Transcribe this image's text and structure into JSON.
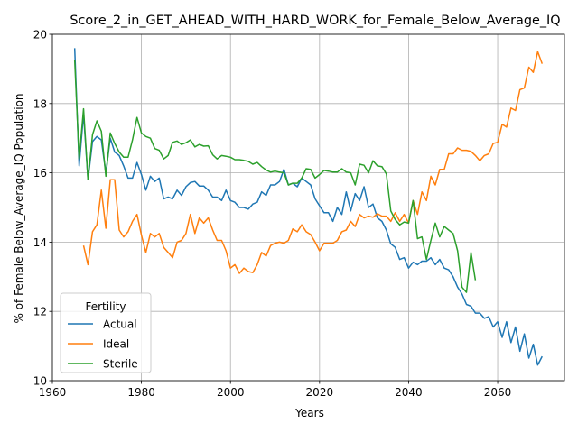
{
  "chart_data": {
    "type": "line",
    "title": "Score_2_in_GET_AHEAD_WITH_HARD_WORK_for_Female_Below_Average_IQ",
    "xlabel": "Years",
    "ylabel": "% of Female Below_Average_IQ Population",
    "xlim": [
      1960,
      2075
    ],
    "ylim": [
      10,
      20
    ],
    "xticks": [
      1960,
      1980,
      2000,
      2020,
      2040,
      2060
    ],
    "yticks": [
      10,
      12,
      14,
      16,
      18,
      20
    ],
    "grid": true,
    "legend": {
      "title": "Fertility",
      "position": "lower-left"
    },
    "series": [
      {
        "name": "Actual",
        "color": "#1f77b4",
        "x": [
          1965,
          1966,
          1967,
          1968,
          1969,
          1970,
          1971,
          1972,
          1973,
          1974,
          1975,
          1976,
          1977,
          1978,
          1979,
          1980,
          1981,
          1982,
          1983,
          1984,
          1985,
          1986,
          1987,
          1988,
          1989,
          1990,
          1991,
          1992,
          1993,
          1994,
          1995,
          1996,
          1997,
          1998,
          1999,
          2000,
          2001,
          2002,
          2003,
          2004,
          2005,
          2006,
          2007,
          2008,
          2009,
          2010,
          2011,
          2012,
          2013,
          2014,
          2015,
          2016,
          2017,
          2018,
          2019,
          2020,
          2021,
          2022,
          2023,
          2024,
          2025,
          2026,
          2027,
          2028,
          2029,
          2030,
          2031,
          2032,
          2033,
          2034,
          2035,
          2036,
          2037,
          2038,
          2039,
          2040,
          2041,
          2042,
          2043,
          2044,
          2045,
          2046,
          2047,
          2048,
          2049,
          2050,
          2051,
          2052,
          2053,
          2054,
          2055,
          2056,
          2057,
          2058,
          2059,
          2060,
          2061,
          2062,
          2063,
          2064,
          2065,
          2066,
          2067,
          2068,
          2069,
          2070
        ],
        "values": [
          19.6,
          16.2,
          17.7,
          15.8,
          16.9,
          17.05,
          16.95,
          16.0,
          17.0,
          16.6,
          16.5,
          16.2,
          15.85,
          15.85,
          16.3,
          15.95,
          15.5,
          15.9,
          15.75,
          15.85,
          15.25,
          15.3,
          15.25,
          15.5,
          15.35,
          15.6,
          15.72,
          15.75,
          15.62,
          15.62,
          15.5,
          15.3,
          15.3,
          15.2,
          15.5,
          15.2,
          15.15,
          15.0,
          15.0,
          14.95,
          15.1,
          15.15,
          15.45,
          15.35,
          15.65,
          15.65,
          15.75,
          16.1,
          15.65,
          15.7,
          15.6,
          15.85,
          15.75,
          15.65,
          15.25,
          15.05,
          14.85,
          14.85,
          14.6,
          15.0,
          14.8,
          15.45,
          14.9,
          15.4,
          15.2,
          15.6,
          15.0,
          15.1,
          14.7,
          14.6,
          14.35,
          13.95,
          13.85,
          13.5,
          13.55,
          13.25,
          13.42,
          13.35,
          13.45,
          13.45,
          13.55,
          13.35,
          13.5,
          13.25,
          13.2,
          13.0,
          12.7,
          12.5,
          12.2,
          12.15,
          11.95,
          11.95,
          11.8,
          11.85,
          11.55,
          11.7,
          11.25,
          11.7,
          11.1,
          11.55,
          10.85,
          11.35,
          10.65,
          11.05,
          10.45,
          10.7
        ]
      },
      {
        "name": "Ideal",
        "color": "#ff7f0e",
        "x": [
          1967,
          1968,
          1969,
          1970,
          1971,
          1972,
          1973,
          1974,
          1975,
          1976,
          1977,
          1978,
          1979,
          1980,
          1981,
          1982,
          1983,
          1984,
          1985,
          1986,
          1987,
          1988,
          1989,
          1990,
          1991,
          1992,
          1993,
          1994,
          1995,
          1996,
          1997,
          1998,
          1999,
          2000,
          2001,
          2002,
          2003,
          2004,
          2005,
          2006,
          2007,
          2008,
          2009,
          2010,
          2011,
          2012,
          2013,
          2014,
          2015,
          2016,
          2017,
          2018,
          2019,
          2020,
          2021,
          2022,
          2023,
          2024,
          2025,
          2026,
          2027,
          2028,
          2029,
          2030,
          2031,
          2032,
          2033,
          2034,
          2035,
          2036,
          2037,
          2038,
          2039,
          2040,
          2041,
          2042,
          2043,
          2044,
          2045,
          2046,
          2047,
          2048,
          2049,
          2050,
          2051,
          2052,
          2053,
          2054,
          2055,
          2056,
          2057,
          2058,
          2059,
          2060,
          2061,
          2062,
          2063,
          2064,
          2065,
          2066,
          2067,
          2068,
          2069,
          2070
        ],
        "values": [
          13.9,
          13.35,
          14.3,
          14.5,
          15.5,
          14.4,
          15.8,
          15.8,
          14.35,
          14.15,
          14.3,
          14.6,
          14.8,
          14.2,
          13.7,
          14.25,
          14.15,
          14.25,
          13.85,
          13.7,
          13.55,
          14.0,
          14.05,
          14.25,
          14.8,
          14.25,
          14.7,
          14.55,
          14.7,
          14.35,
          14.05,
          14.05,
          13.75,
          13.25,
          13.35,
          13.1,
          13.25,
          13.15,
          13.12,
          13.35,
          13.7,
          13.6,
          13.9,
          13.97,
          14.0,
          13.97,
          14.05,
          14.38,
          14.3,
          14.5,
          14.3,
          14.22,
          14.0,
          13.75,
          13.97,
          13.97,
          13.97,
          14.05,
          14.3,
          14.35,
          14.6,
          14.45,
          14.8,
          14.7,
          14.75,
          14.72,
          14.82,
          14.75,
          14.75,
          14.6,
          14.85,
          14.6,
          14.8,
          14.55,
          15.2,
          14.8,
          15.45,
          15.2,
          15.9,
          15.65,
          16.1,
          16.1,
          16.55,
          16.55,
          16.72,
          16.65,
          16.65,
          16.62,
          16.5,
          16.35,
          16.5,
          16.55,
          16.85,
          16.88,
          17.4,
          17.32,
          17.87,
          17.8,
          18.4,
          18.45,
          19.05,
          18.9,
          19.5,
          19.15
        ]
      },
      {
        "name": "Sterile",
        "color": "#2ca02c",
        "x": [
          1965,
          1966,
          1967,
          1968,
          1969,
          1970,
          1971,
          1972,
          1973,
          1974,
          1975,
          1976,
          1977,
          1978,
          1979,
          1980,
          1981,
          1982,
          1983,
          1984,
          1985,
          1986,
          1987,
          1988,
          1989,
          1990,
          1991,
          1992,
          1993,
          1994,
          1995,
          1996,
          1997,
          1998,
          1999,
          2000,
          2001,
          2002,
          2003,
          2004,
          2005,
          2006,
          2007,
          2008,
          2009,
          2010,
          2011,
          2012,
          2013,
          2014,
          2015,
          2016,
          2017,
          2018,
          2019,
          2020,
          2021,
          2022,
          2023,
          2024,
          2025,
          2026,
          2027,
          2028,
          2029,
          2030,
          2031,
          2032,
          2033,
          2034,
          2035,
          2036,
          2037,
          2038,
          2039,
          2040,
          2041,
          2042,
          2043,
          2044,
          2045,
          2046,
          2047,
          2048,
          2049,
          2050,
          2051,
          2052,
          2053,
          2054,
          2055
        ],
        "values": [
          19.25,
          16.4,
          17.85,
          15.8,
          17.1,
          17.5,
          17.2,
          15.9,
          17.15,
          16.85,
          16.6,
          16.45,
          16.45,
          16.95,
          17.6,
          17.15,
          17.05,
          17.0,
          16.7,
          16.65,
          16.4,
          16.5,
          16.88,
          16.92,
          16.82,
          16.87,
          16.95,
          16.75,
          16.82,
          16.77,
          16.78,
          16.52,
          16.4,
          16.5,
          16.48,
          16.45,
          16.38,
          16.38,
          16.36,
          16.33,
          16.25,
          16.3,
          16.18,
          16.08,
          16.02,
          16.05,
          16.02,
          16.0,
          15.65,
          15.7,
          15.7,
          15.85,
          16.12,
          16.1,
          15.85,
          15.95,
          16.07,
          16.05,
          16.02,
          16.02,
          16.12,
          16.02,
          16.0,
          15.65,
          16.25,
          16.22,
          16.0,
          16.35,
          16.2,
          16.18,
          15.97,
          14.9,
          14.65,
          14.5,
          14.58,
          14.55,
          15.2,
          14.1,
          14.15,
          13.5,
          14.05,
          14.55,
          14.15,
          14.45,
          14.35,
          14.25,
          13.75,
          12.7,
          12.55,
          13.7,
          12.9
        ]
      }
    ]
  }
}
